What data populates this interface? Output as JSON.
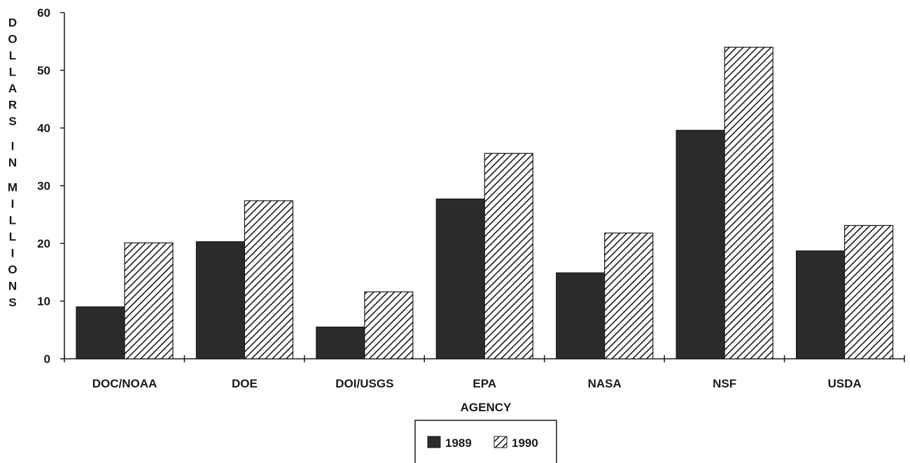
{
  "chart_data": {
    "type": "bar",
    "title": "",
    "xlabel": "AGENCY",
    "ylabel": "DOLLARS IN MILLIONS",
    "ylim": [
      0,
      60
    ],
    "yticks": [
      0,
      10,
      20,
      30,
      40,
      50,
      60
    ],
    "categories": [
      "DOC/NOAA",
      "DOE",
      "DOI/USGS",
      "EPA",
      "NASA",
      "NSF",
      "USDA"
    ],
    "series": [
      {
        "name": "1989",
        "values": [
          9,
          20.3,
          5.5,
          27.7,
          14.9,
          39.6,
          18.7
        ],
        "fill": "#2b2b2b"
      },
      {
        "name": "1990",
        "values": [
          20.1,
          27.4,
          11.6,
          35.6,
          21.8,
          54,
          23.1
        ],
        "fill": "hatch"
      }
    ],
    "grid": false,
    "legend": "bottom-center"
  }
}
